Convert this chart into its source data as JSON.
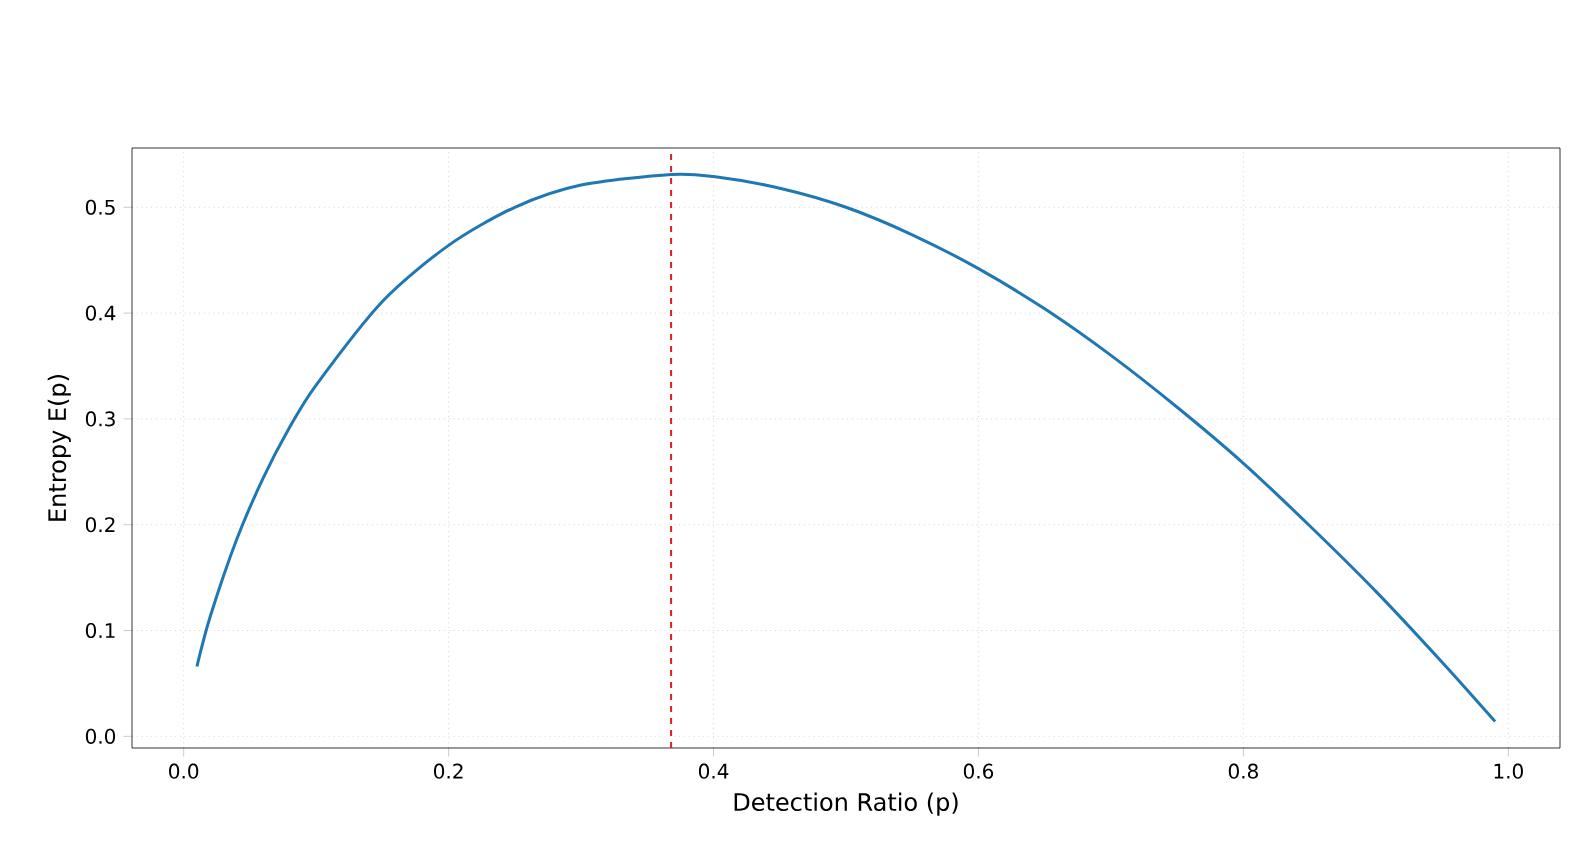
{
  "chart_data": {
    "type": "line",
    "xlabel": "Detection Ratio (p)",
    "ylabel": "Entropy E(p)",
    "x": [
      0.01,
      0.02,
      0.04,
      0.06,
      0.08,
      0.1,
      0.15,
      0.2,
      0.25,
      0.3,
      0.368,
      0.4,
      0.45,
      0.5,
      0.55,
      0.6,
      0.65,
      0.7,
      0.75,
      0.8,
      0.85,
      0.9,
      0.95,
      0.99
    ],
    "series": [
      {
        "color": "#1f77b4",
        "values": [
          0.066,
          0.113,
          0.186,
          0.244,
          0.292,
          0.332,
          0.411,
          0.464,
          0.5,
          0.521,
          0.531,
          0.529,
          0.518,
          0.5,
          0.474,
          0.442,
          0.404,
          0.36,
          0.311,
          0.258,
          0.199,
          0.137,
          0.07,
          0.014
        ]
      }
    ],
    "xlim": [
      -0.039,
      1.039
    ],
    "ylim": [
      -0.011,
      0.556
    ],
    "xticks": [
      {
        "value": 0,
        "label": "0.0"
      },
      0.2,
      0.4,
      0.6,
      0.8,
      {
        "value": 1,
        "label": "1.0"
      }
    ],
    "yticks": [
      {
        "value": 0,
        "label": "0.0"
      },
      0.1,
      0.2,
      0.3,
      0.4,
      0.5
    ],
    "grid": true,
    "line_style": "solid",
    "marker": "none",
    "ref_lines": [
      {
        "axis": "x",
        "value": 0.368,
        "color": "#d62728",
        "line_style": "dashed"
      }
    ]
  }
}
